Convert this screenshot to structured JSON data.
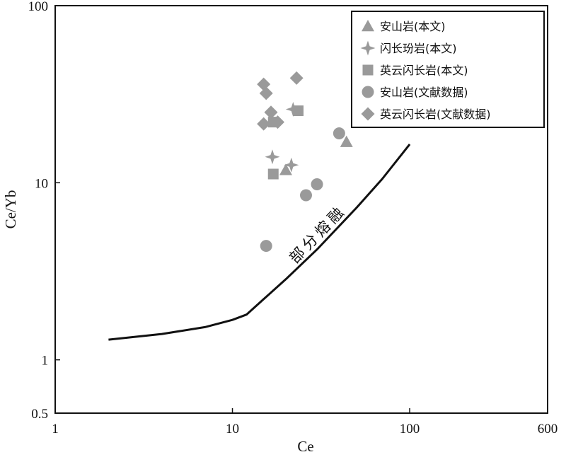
{
  "chart_data": {
    "type": "scatter",
    "xlabel": "Ce",
    "ylabel": "Ce/Yb",
    "x_scale": "log",
    "y_scale": "log",
    "xlim": [
      1,
      600
    ],
    "ylim": [
      0.5,
      100
    ],
    "x_ticks": [
      {
        "value": 1,
        "label": "1"
      },
      {
        "value": 10,
        "label": "10"
      },
      {
        "value": 100,
        "label": "100"
      },
      {
        "value": 600,
        "label": "600"
      }
    ],
    "y_ticks": [
      {
        "value": 0.5,
        "label": "0.5"
      },
      {
        "value": 1,
        "label": "1"
      },
      {
        "value": 10,
        "label": "10"
      },
      {
        "value": 100,
        "label": "100"
      }
    ],
    "grid": false,
    "legend_position": "top-right",
    "marker_color": "#9a9a9a",
    "series": [
      {
        "name": "安山岩(本文)",
        "marker": "triangle",
        "points": [
          [
            20,
            11.8
          ],
          [
            44,
            17
          ]
        ]
      },
      {
        "name": "闪长玢岩(本文)",
        "marker": "star",
        "points": [
          [
            16.8,
            14
          ],
          [
            21.5,
            12.6
          ],
          [
            22,
            26
          ]
        ]
      },
      {
        "name": "英云闪长岩(本文)",
        "marker": "square",
        "points": [
          [
            17,
            11.2
          ],
          [
            17,
            22
          ],
          [
            23.5,
            25.5
          ]
        ]
      },
      {
        "name": "安山岩(文献数据)",
        "marker": "circle",
        "points": [
          [
            15.5,
            4.4
          ],
          [
            26,
            8.5
          ],
          [
            30,
            9.8
          ],
          [
            40,
            19
          ]
        ]
      },
      {
        "name": "英云闪长岩(文献数据)",
        "marker": "diamond",
        "points": [
          [
            15,
            36
          ],
          [
            15.5,
            32
          ],
          [
            16.5,
            25
          ],
          [
            15,
            21.5
          ],
          [
            18,
            22
          ],
          [
            23,
            39
          ]
        ]
      }
    ],
    "curves": [
      {
        "label": "部分熔融",
        "points": [
          [
            2,
            1.3
          ],
          [
            4,
            1.4
          ],
          [
            7,
            1.53
          ],
          [
            10,
            1.68
          ],
          [
            12,
            1.8
          ],
          [
            15,
            2.2
          ],
          [
            20,
            2.85
          ],
          [
            30,
            4.2
          ],
          [
            50,
            7.2
          ],
          [
            70,
            10.5
          ],
          [
            100,
            16.5
          ]
        ]
      }
    ]
  }
}
